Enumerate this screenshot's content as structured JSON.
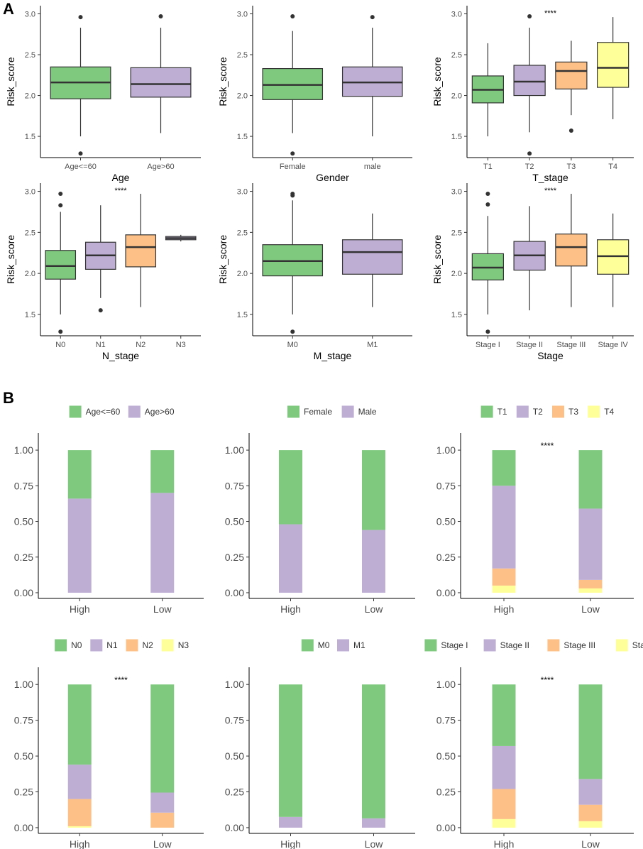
{
  "panels": {
    "a": "A",
    "b": "B"
  },
  "colors": {
    "green": "#7fc97f",
    "purple": "#beaed4",
    "orange": "#fdc086",
    "yellow": "#ffff99"
  },
  "chart_data": [
    {
      "type": "box",
      "panel": "A",
      "xlabel": "Age",
      "ylabel": "Risk_score",
      "categories": [
        "Age<=60",
        "Age>60"
      ],
      "fill": [
        "#7fc97f",
        "#beaed4"
      ],
      "yticks": [
        1.5,
        2.0,
        2.5,
        3.0
      ],
      "ytick_labels": [
        "1.5",
        "2.0",
        "2.5",
        "3.0"
      ],
      "ylim": [
        1.24,
        3.1
      ],
      "boxes": [
        {
          "q1": 1.96,
          "median": 2.16,
          "q3": 2.35,
          "whisker_low": 1.5,
          "whisker_high": 2.83,
          "outliers": [
            2.96,
            1.29
          ]
        },
        {
          "q1": 1.98,
          "median": 2.14,
          "q3": 2.34,
          "whisker_low": 1.54,
          "whisker_high": 2.83,
          "outliers": [
            2.97
          ]
        }
      ],
      "significance": ""
    },
    {
      "type": "box",
      "panel": "A",
      "xlabel": "Gender",
      "ylabel": "Risk_score",
      "categories": [
        "Female",
        "male"
      ],
      "fill": [
        "#7fc97f",
        "#beaed4"
      ],
      "yticks": [
        1.5,
        2.0,
        2.5,
        3.0
      ],
      "ytick_labels": [
        "1.5",
        "2.0",
        "2.5",
        "3.0"
      ],
      "ylim": [
        1.24,
        3.1
      ],
      "boxes": [
        {
          "q1": 1.95,
          "median": 2.13,
          "q3": 2.33,
          "whisker_low": 1.54,
          "whisker_high": 2.79,
          "outliers": [
            2.97,
            1.29
          ]
        },
        {
          "q1": 1.99,
          "median": 2.16,
          "q3": 2.35,
          "whisker_low": 1.5,
          "whisker_high": 2.83,
          "outliers": [
            2.96
          ]
        }
      ],
      "significance": ""
    },
    {
      "type": "box",
      "panel": "A",
      "xlabel": "T_stage",
      "ylabel": "Risk_score",
      "categories": [
        "T1",
        "T2",
        "T3",
        "T4"
      ],
      "fill": [
        "#7fc97f",
        "#beaed4",
        "#fdc086",
        "#ffff99"
      ],
      "yticks": [
        1.5,
        2.0,
        2.5,
        3.0
      ],
      "ytick_labels": [
        "1.5",
        "2.0",
        "2.5",
        "3.0"
      ],
      "ylim": [
        1.24,
        3.1
      ],
      "boxes": [
        {
          "q1": 1.91,
          "median": 2.07,
          "q3": 2.24,
          "whisker_low": 1.5,
          "whisker_high": 2.64,
          "outliers": []
        },
        {
          "q1": 2.0,
          "median": 2.17,
          "q3": 2.37,
          "whisker_low": 1.55,
          "whisker_high": 2.83,
          "outliers": [
            2.97,
            1.29
          ]
        },
        {
          "q1": 2.08,
          "median": 2.3,
          "q3": 2.41,
          "whisker_low": 1.76,
          "whisker_high": 2.67,
          "outliers": [
            1.57
          ]
        },
        {
          "q1": 2.1,
          "median": 2.34,
          "q3": 2.65,
          "whisker_low": 1.71,
          "whisker_high": 2.96,
          "outliers": []
        }
      ],
      "significance": "****"
    },
    {
      "type": "box",
      "panel": "A",
      "xlabel": "N_stage",
      "ylabel": "Risk_score",
      "categories": [
        "N0",
        "N1",
        "N2",
        "N3"
      ],
      "fill": [
        "#7fc97f",
        "#beaed4",
        "#fdc086",
        "#beaed4"
      ],
      "yticks": [
        1.5,
        2.0,
        2.5,
        3.0
      ],
      "ytick_labels": [
        "1.5",
        "2.0",
        "2.5",
        "3.0"
      ],
      "ylim": [
        1.24,
        3.1
      ],
      "boxes": [
        {
          "q1": 1.93,
          "median": 2.09,
          "q3": 2.28,
          "whisker_low": 1.5,
          "whisker_high": 2.75,
          "outliers": [
            2.97,
            2.83,
            1.29
          ]
        },
        {
          "q1": 2.05,
          "median": 2.22,
          "q3": 2.38,
          "whisker_low": 1.7,
          "whisker_high": 2.83,
          "outliers": [
            1.55
          ]
        },
        {
          "q1": 2.08,
          "median": 2.32,
          "q3": 2.47,
          "whisker_low": 1.59,
          "whisker_high": 2.97,
          "outliers": []
        },
        {
          "q1": 2.41,
          "median": 2.43,
          "q3": 2.45,
          "whisker_low": 2.39,
          "whisker_high": 2.47,
          "outliers": []
        }
      ],
      "significance": "****"
    },
    {
      "type": "box",
      "panel": "A",
      "xlabel": "M_stage",
      "ylabel": "Risk_score",
      "categories": [
        "M0",
        "M1"
      ],
      "fill": [
        "#7fc97f",
        "#beaed4"
      ],
      "yticks": [
        1.5,
        2.0,
        2.5,
        3.0
      ],
      "ytick_labels": [
        "1.5",
        "2.0",
        "2.5",
        "3.0"
      ],
      "ylim": [
        1.24,
        3.1
      ],
      "boxes": [
        {
          "q1": 1.97,
          "median": 2.15,
          "q3": 2.35,
          "whisker_low": 1.5,
          "whisker_high": 2.89,
          "outliers": [
            2.97,
            2.95,
            1.29
          ]
        },
        {
          "q1": 1.99,
          "median": 2.26,
          "q3": 2.41,
          "whisker_low": 1.59,
          "whisker_high": 2.73,
          "outliers": []
        }
      ],
      "significance": ""
    },
    {
      "type": "box",
      "panel": "A",
      "xlabel": "Stage",
      "ylabel": "Risk_score",
      "categories": [
        "Stage I",
        "Stage II",
        "Stage III",
        "Stage IV"
      ],
      "fill": [
        "#7fc97f",
        "#beaed4",
        "#fdc086",
        "#ffff99"
      ],
      "yticks": [
        1.5,
        2.0,
        2.5,
        3.0
      ],
      "ytick_labels": [
        "1.5",
        "2.0",
        "2.5",
        "3.0"
      ],
      "ylim": [
        1.24,
        3.1
      ],
      "boxes": [
        {
          "q1": 1.92,
          "median": 2.07,
          "q3": 2.24,
          "whisker_low": 1.5,
          "whisker_high": 2.7,
          "outliers": [
            2.97,
            2.84,
            1.29
          ]
        },
        {
          "q1": 2.04,
          "median": 2.22,
          "q3": 2.39,
          "whisker_low": 1.55,
          "whisker_high": 2.82,
          "outliers": []
        },
        {
          "q1": 2.09,
          "median": 2.32,
          "q3": 2.48,
          "whisker_low": 1.59,
          "whisker_high": 2.97,
          "outliers": []
        },
        {
          "q1": 1.99,
          "median": 2.21,
          "q3": 2.41,
          "whisker_low": 1.59,
          "whisker_high": 2.73,
          "outliers": []
        }
      ],
      "significance": "****"
    },
    {
      "type": "bar",
      "stacked": true,
      "panel": "B",
      "categories": [
        "High",
        "Low"
      ],
      "legend": [
        "Age<=60",
        "Age>60"
      ],
      "legend_colors": [
        "#7fc97f",
        "#beaed4"
      ],
      "yticks": [
        0,
        0.25,
        0.5,
        0.75,
        1.0
      ],
      "ytick_labels": [
        "0.00",
        "0.25",
        "0.50",
        "0.75",
        "1.00"
      ],
      "ylim": [
        -0.04,
        1.12
      ],
      "series": [
        {
          "name": "Age>60",
          "color": "#beaed4",
          "values": [
            0.66,
            0.7
          ]
        },
        {
          "name": "Age<=60",
          "color": "#7fc97f",
          "values": [
            0.34,
            0.3
          ]
        }
      ],
      "significance": ""
    },
    {
      "type": "bar",
      "stacked": true,
      "panel": "B",
      "categories": [
        "High",
        "Low"
      ],
      "legend": [
        "Female",
        "Male"
      ],
      "legend_colors": [
        "#7fc97f",
        "#beaed4"
      ],
      "yticks": [
        0,
        0.25,
        0.5,
        0.75,
        1.0
      ],
      "ytick_labels": [
        "0.00",
        "0.25",
        "0.50",
        "0.75",
        "1.00"
      ],
      "ylim": [
        -0.04,
        1.12
      ],
      "series": [
        {
          "name": "Male",
          "color": "#beaed4",
          "values": [
            0.48,
            0.44
          ]
        },
        {
          "name": "Female",
          "color": "#7fc97f",
          "values": [
            0.52,
            0.56
          ]
        }
      ],
      "significance": ""
    },
    {
      "type": "bar",
      "stacked": true,
      "panel": "B",
      "categories": [
        "High",
        "Low"
      ],
      "legend": [
        "T1",
        "T2",
        "T3",
        "T4"
      ],
      "legend_colors": [
        "#7fc97f",
        "#beaed4",
        "#fdc086",
        "#ffff99"
      ],
      "yticks": [
        0,
        0.25,
        0.5,
        0.75,
        1.0
      ],
      "ytick_labels": [
        "0.00",
        "0.25",
        "0.50",
        "0.75",
        "1.00"
      ],
      "ylim": [
        -0.04,
        1.12
      ],
      "series": [
        {
          "name": "T4",
          "color": "#ffff99",
          "values": [
            0.05,
            0.03
          ]
        },
        {
          "name": "T3",
          "color": "#fdc086",
          "values": [
            0.12,
            0.06
          ]
        },
        {
          "name": "T2",
          "color": "#beaed4",
          "values": [
            0.58,
            0.5
          ]
        },
        {
          "name": "T1",
          "color": "#7fc97f",
          "values": [
            0.25,
            0.41
          ]
        }
      ],
      "significance": "****"
    },
    {
      "type": "bar",
      "stacked": true,
      "panel": "B",
      "categories": [
        "High",
        "Low"
      ],
      "legend": [
        "N0",
        "N1",
        "N2",
        "N3"
      ],
      "legend_colors": [
        "#7fc97f",
        "#beaed4",
        "#fdc086",
        "#ffff99"
      ],
      "yticks": [
        0,
        0.25,
        0.5,
        0.75,
        1.0
      ],
      "ytick_labels": [
        "0.00",
        "0.25",
        "0.50",
        "0.75",
        "1.00"
      ],
      "ylim": [
        -0.04,
        1.12
      ],
      "series": [
        {
          "name": "N3",
          "color": "#ffff99",
          "values": [
            0.01,
            0.0
          ]
        },
        {
          "name": "N2",
          "color": "#fdc086",
          "values": [
            0.19,
            0.105
          ]
        },
        {
          "name": "N1",
          "color": "#beaed4",
          "values": [
            0.24,
            0.14
          ]
        },
        {
          "name": "N0",
          "color": "#7fc97f",
          "values": [
            0.56,
            0.755
          ]
        }
      ],
      "significance": "****"
    },
    {
      "type": "bar",
      "stacked": true,
      "panel": "B",
      "categories": [
        "High",
        "Low"
      ],
      "legend": [
        "M0",
        "M1"
      ],
      "legend_colors": [
        "#7fc97f",
        "#beaed4"
      ],
      "yticks": [
        0,
        0.25,
        0.5,
        0.75,
        1.0
      ],
      "ytick_labels": [
        "0.00",
        "0.25",
        "0.50",
        "0.75",
        "1.00"
      ],
      "ylim": [
        -0.04,
        1.12
      ],
      "series": [
        {
          "name": "M1",
          "color": "#beaed4",
          "values": [
            0.075,
            0.065
          ]
        },
        {
          "name": "M0",
          "color": "#7fc97f",
          "values": [
            0.925,
            0.935
          ]
        }
      ],
      "significance": ""
    },
    {
      "type": "bar",
      "stacked": true,
      "panel": "B",
      "categories": [
        "High",
        "Low"
      ],
      "legend": [
        "Stage I",
        "Stage II",
        "Stage III",
        "Stage IV"
      ],
      "legend_colors": [
        "#7fc97f",
        "#beaed4",
        "#fdc086",
        "#ffff99"
      ],
      "yticks": [
        0,
        0.25,
        0.5,
        0.75,
        1.0
      ],
      "ytick_labels": [
        "0.00",
        "0.25",
        "0.50",
        "0.75",
        "1.00"
      ],
      "ylim": [
        -0.04,
        1.12
      ],
      "series": [
        {
          "name": "Stage IV",
          "color": "#ffff99",
          "values": [
            0.06,
            0.045
          ]
        },
        {
          "name": "Stage III",
          "color": "#fdc086",
          "values": [
            0.21,
            0.115
          ]
        },
        {
          "name": "Stage II",
          "color": "#beaed4",
          "values": [
            0.3,
            0.18
          ]
        },
        {
          "name": "Stage I",
          "color": "#7fc97f",
          "values": [
            0.43,
            0.66
          ]
        }
      ],
      "significance": "****"
    }
  ]
}
